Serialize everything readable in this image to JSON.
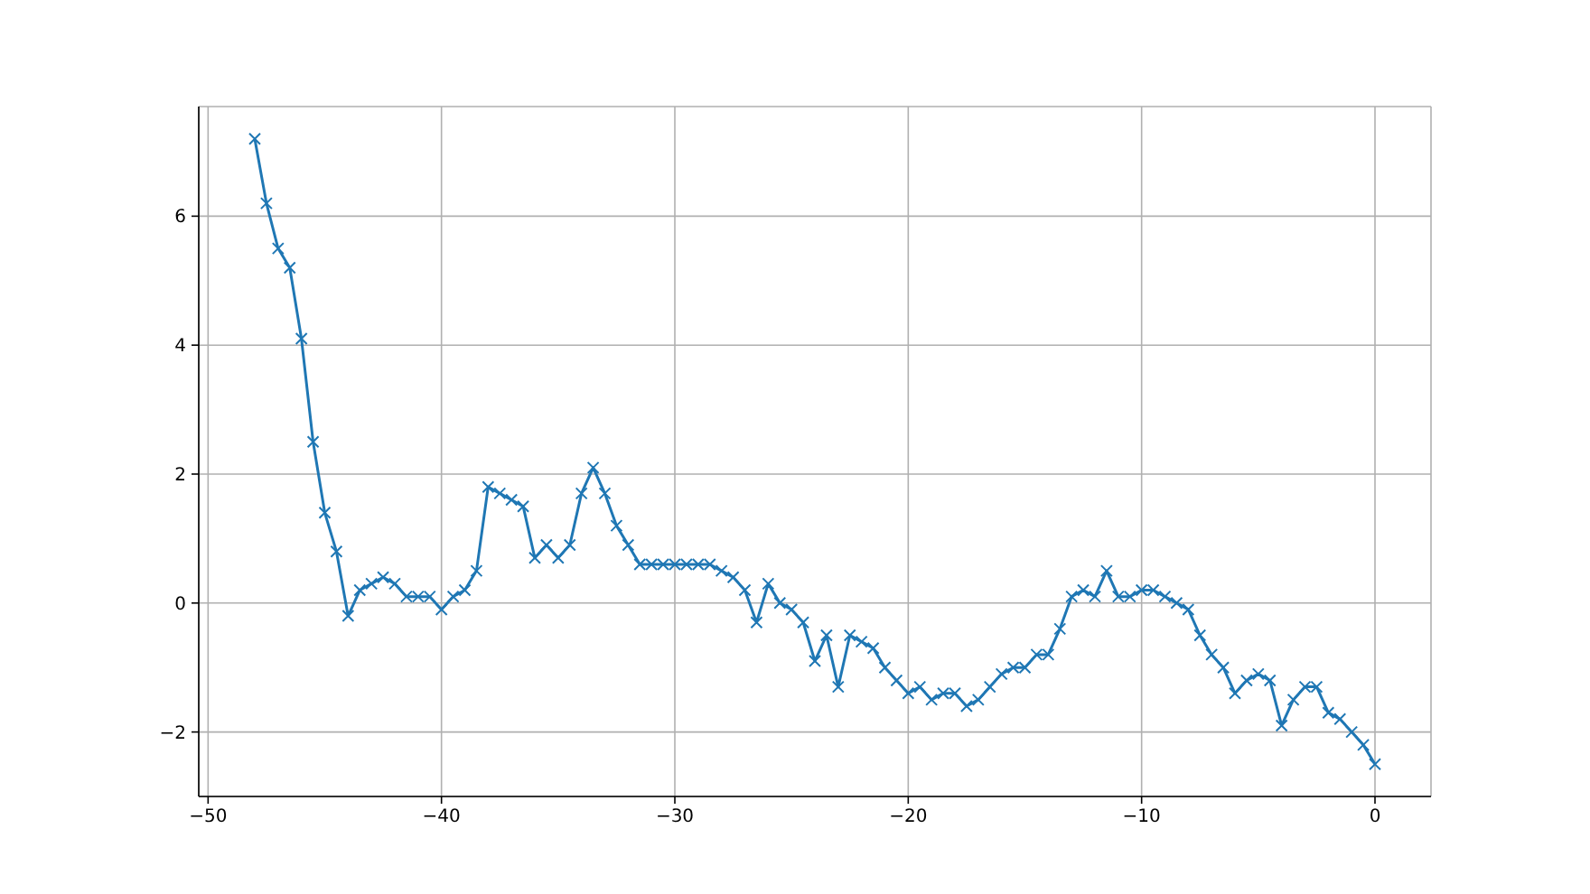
{
  "chart_data": {
    "type": "line",
    "x": [
      -48,
      -47.5,
      -47,
      -46.5,
      -46,
      -45.5,
      -45,
      -44.5,
      -44,
      -43.5,
      -43,
      -42.5,
      -42,
      -41.5,
      -41,
      -40.5,
      -40,
      -39.5,
      -39,
      -38.5,
      -38,
      -37.5,
      -37,
      -36.5,
      -36,
      -35.5,
      -35,
      -34.5,
      -34,
      -33.5,
      -33,
      -32.5,
      -32,
      -31.5,
      -31,
      -30.5,
      -30,
      -29.5,
      -29,
      -28.5,
      -28,
      -27.5,
      -27,
      -26.5,
      -26,
      -25.5,
      -25,
      -24.5,
      -24,
      -23.5,
      -23,
      -22.5,
      -22,
      -21.5,
      -21,
      -20.5,
      -20,
      -19.5,
      -19,
      -18.5,
      -18,
      -17.5,
      -17,
      -16.5,
      -16,
      -15.5,
      -15,
      -14.5,
      -14,
      -13.5,
      -13,
      -12.5,
      -12,
      -11.5,
      -11,
      -10.5,
      -10,
      -9.5,
      -9,
      -8.5,
      -8,
      -7.5,
      -7,
      -6.5,
      -6,
      -5.5,
      -5,
      -4.5,
      -4,
      -3.5,
      -3,
      -2.5,
      -2,
      -1.5,
      -1,
      -0.5,
      0
    ],
    "series": [
      {
        "color": "#1f77b4",
        "values": [
          7.2,
          6.2,
          5.5,
          5.2,
          4.1,
          2.5,
          1.4,
          0.8,
          -0.2,
          0.2,
          0.3,
          0.4,
          0.3,
          0.1,
          0.1,
          0.1,
          -0.1,
          0.1,
          0.2,
          0.5,
          1.8,
          1.7,
          1.6,
          1.5,
          0.7,
          0.9,
          0.7,
          0.9,
          1.7,
          2.1,
          1.7,
          1.2,
          0.9,
          0.6,
          0.6,
          0.6,
          0.6,
          0.6,
          0.6,
          0.6,
          0.5,
          0.4,
          0.2,
          -0.3,
          0.3,
          0.0,
          -0.1,
          -0.3,
          -0.9,
          -0.5,
          -1.3,
          -0.5,
          -0.6,
          -0.7,
          -1.0,
          -1.2,
          -1.4,
          -1.3,
          -1.5,
          -1.4,
          -1.4,
          -1.6,
          -1.5,
          -1.3,
          -1.1,
          -1.0,
          -1.0,
          -0.8,
          -0.8,
          -0.4,
          0.1,
          0.2,
          0.1,
          0.5,
          0.1,
          0.1,
          0.2,
          0.2,
          0.1,
          0.0,
          -0.1,
          -0.5,
          -0.8,
          -1.0,
          -1.4,
          -1.2,
          -1.1,
          -1.2,
          -1.9,
          -1.5,
          -1.3,
          -1.3,
          -1.7,
          -1.8,
          -2.0,
          -2.2,
          -2.5
        ]
      }
    ],
    "xlim": [
      -50.4,
      2.4
    ],
    "ylim": [
      -3.0,
      7.7
    ],
    "xticks": [
      -50,
      -40,
      -30,
      -20,
      -10,
      0
    ],
    "yticks": [
      -2,
      0,
      2,
      4,
      6
    ],
    "grid": true,
    "marker": "cross",
    "line_style": "solid"
  }
}
